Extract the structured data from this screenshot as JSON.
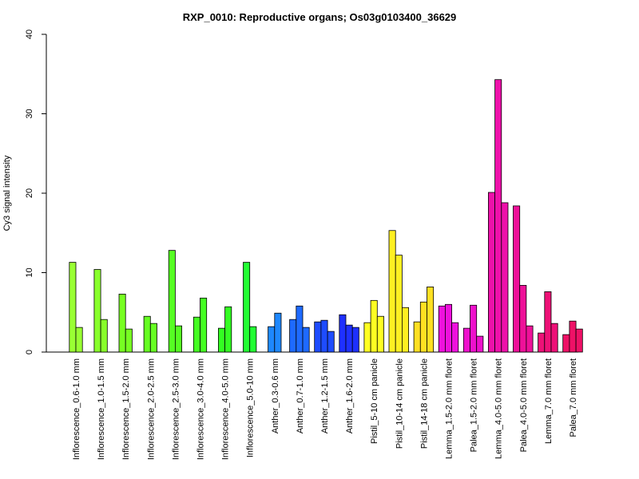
{
  "chart_data": {
    "type": "bar",
    "title": "RXP_0010: Reproductive organs; Os03g0103400_36629",
    "xlabel": "",
    "ylabel": "Cy3 signal intensity",
    "ylim": [
      0,
      40
    ],
    "yticks": [
      0,
      10,
      20,
      30,
      40
    ],
    "grid": false,
    "legend": "none",
    "groups": [
      {
        "label": "Inflorescence_0.6-1.0 mm",
        "color": "#99FF33",
        "values": [
          11.3,
          3.1
        ]
      },
      {
        "label": "Inflorescence_1.0-1.5 mm",
        "color": "#88FF2B",
        "values": [
          10.4,
          4.1
        ]
      },
      {
        "label": "Inflorescence_1.5-2.0 mm",
        "color": "#77FF22",
        "values": [
          7.3,
          2.9
        ]
      },
      {
        "label": "Inflorescence_2.0-2.5 mm",
        "color": "#66FF22",
        "values": [
          4.5,
          3.6
        ]
      },
      {
        "label": "Inflorescence_2.5-3.0 mm",
        "color": "#55FF22",
        "values": [
          12.8,
          3.3
        ]
      },
      {
        "label": "Inflorescence_3.0-4.0 mm",
        "color": "#44FF22",
        "values": [
          4.4,
          6.8
        ]
      },
      {
        "label": "Inflorescence_4.0-5.0 mm",
        "color": "#33FF22",
        "values": [
          3.0,
          5.7
        ]
      },
      {
        "label": "Inflorescence_5.0-10 mm",
        "color": "#22FF33",
        "values": [
          11.3,
          3.2
        ]
      },
      {
        "label": "Anther_0.3-0.6 mm",
        "color": "#1E88FF",
        "values": [
          3.2,
          4.9
        ]
      },
      {
        "label": "Anther_0.7-1.0 mm",
        "color": "#1E6AFF",
        "values": [
          4.1,
          5.8,
          3.1
        ]
      },
      {
        "label": "Anther_1.2-1.5 mm",
        "color": "#1E4CFF",
        "values": [
          3.8,
          4.0,
          2.6
        ]
      },
      {
        "label": "Anther_1.6-2.0 mm",
        "color": "#1E30FF",
        "values": [
          4.7,
          3.4,
          3.1
        ]
      },
      {
        "label": "Pistil_5-10 cm panicle",
        "color": "#FFFF22",
        "values": [
          3.7,
          6.5,
          4.5
        ]
      },
      {
        "label": "Pistil_10-14 cm panicle",
        "color": "#FFF022",
        "values": [
          15.3,
          12.2,
          5.6
        ]
      },
      {
        "label": "Pistil_14-18 cm panicle",
        "color": "#FFE022",
        "values": [
          3.8,
          6.3,
          8.2
        ]
      },
      {
        "label": "Lemma_1.5-2.0 mm floret",
        "color": "#EE11DD",
        "values": [
          5.8,
          6.0,
          3.7
        ]
      },
      {
        "label": "Palea_1.5-2.0 mm floret",
        "color": "#EE11CC",
        "values": [
          3.0,
          5.9,
          2.0
        ]
      },
      {
        "label": "Lemma_4.0-5.0 mm floret",
        "color": "#EE11AA",
        "values": [
          20.1,
          34.3,
          18.8
        ]
      },
      {
        "label": "Palea_4.0-5.0 mm floret",
        "color": "#EE1199",
        "values": [
          18.4,
          8.4,
          3.3
        ]
      },
      {
        "label": "Lemma_7.0 mm floret",
        "color": "#EE1177",
        "values": [
          2.4,
          7.6,
          3.6
        ]
      },
      {
        "label": "Palea_7.0 mm floret",
        "color": "#EE1166",
        "values": [
          2.2,
          3.9,
          2.9
        ]
      }
    ]
  }
}
